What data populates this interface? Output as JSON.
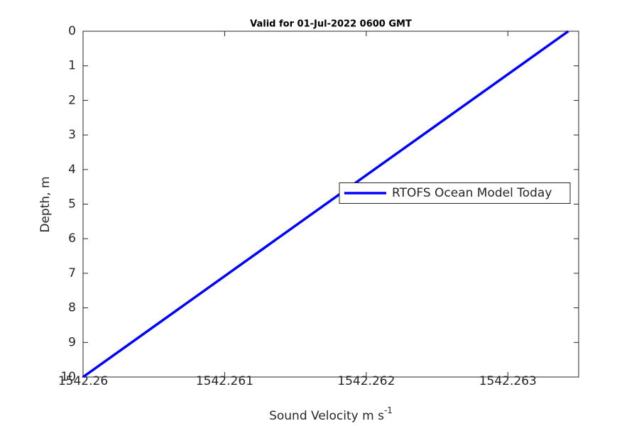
{
  "chart_data": {
    "type": "line",
    "title": "Valid for 01-Jul-2022 0600 GMT",
    "xlabel": {
      "text": "Sound Velocity m s",
      "superscript": "-1"
    },
    "ylabel": "Depth, m",
    "series": [
      {
        "name": "RTOFS Ocean Model Today",
        "color": "#0000ff",
        "x": [
          1542.263427,
          1542.26
        ],
        "values": [
          0,
          10
        ]
      }
    ],
    "xlim": [
      1542.26,
      1542.2635
    ],
    "xticks": [
      1542.26,
      1542.261,
      1542.262,
      1542.263
    ],
    "ylim": [
      0,
      10
    ],
    "yticks": [
      0,
      1,
      2,
      3,
      4,
      5,
      6,
      7,
      8,
      9,
      10
    ],
    "y_reversed": true,
    "grid": false,
    "legend_loc": "east"
  }
}
